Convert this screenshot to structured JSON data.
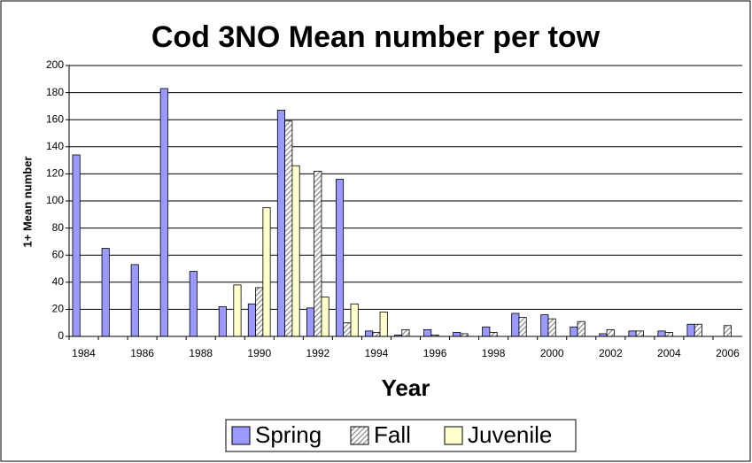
{
  "chart_data": {
    "type": "bar",
    "title": "Cod 3NO Mean number per tow",
    "x_label": "Year",
    "y_label": "1+ Mean number",
    "categories": [
      "1984",
      null,
      "1986",
      null,
      "1988",
      null,
      "1990",
      null,
      "1992",
      null,
      "1994",
      null,
      "1996",
      null,
      "1998",
      null,
      "2000",
      null,
      "2002",
      null,
      "2004",
      null,
      "2006"
    ],
    "series": [
      {
        "name": "Spring",
        "color": "#9999ff",
        "values": [
          134,
          65,
          53,
          183,
          48,
          22,
          24,
          167,
          21,
          116,
          4,
          1,
          5,
          3,
          7,
          17,
          16,
          7,
          2,
          4,
          4,
          9,
          null
        ]
      },
      {
        "name": "Fall",
        "color": "#808080",
        "pattern": "hatch",
        "values": [
          null,
          null,
          null,
          null,
          null,
          null,
          36,
          159,
          122,
          10,
          3,
          5,
          1,
          2,
          3,
          14,
          13,
          11,
          5,
          4,
          3,
          9,
          8
        ]
      },
      {
        "name": "Juvenile",
        "color": "#ffffcc",
        "values": [
          null,
          null,
          null,
          null,
          null,
          38,
          95,
          126,
          29,
          24,
          18,
          null,
          null,
          null,
          null,
          null,
          null,
          null,
          null,
          null,
          null,
          null,
          null
        ]
      }
    ],
    "ylim": [
      0,
      200
    ],
    "yticks": [
      0,
      20,
      40,
      60,
      80,
      100,
      120,
      140,
      160,
      180,
      200
    ],
    "grid": true,
    "legend": "bottom"
  }
}
